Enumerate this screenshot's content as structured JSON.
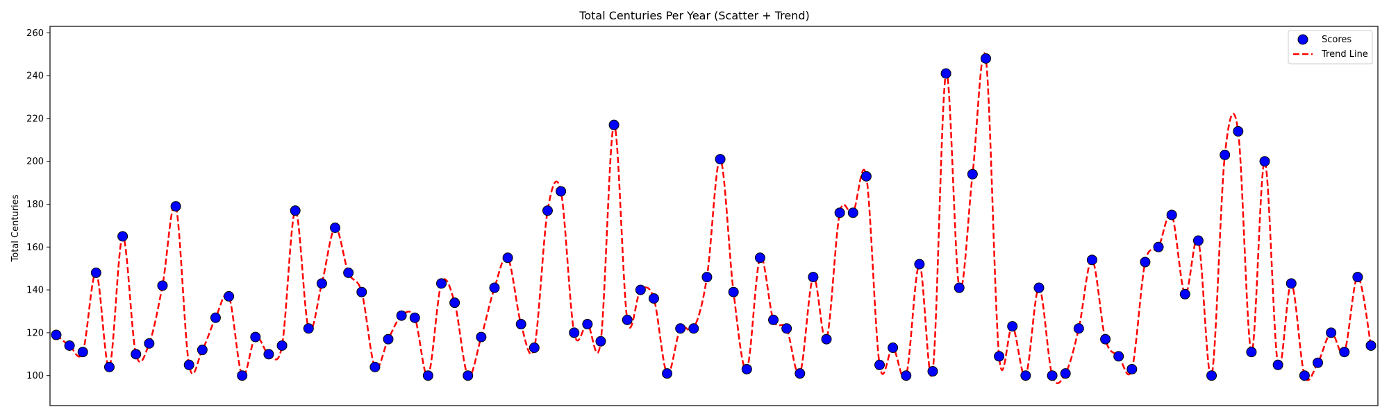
{
  "chart_data": {
    "type": "scatter",
    "title": "Total Centuries Per Year (Scatter + Trend)",
    "xlabel": "",
    "ylabel": "Total Centuries",
    "ylim": [
      86,
      263
    ],
    "yticks": [
      100,
      120,
      140,
      160,
      180,
      200,
      220,
      240,
      260
    ],
    "grid": false,
    "legend_position": "top-right",
    "series": [
      {
        "name": "Scores",
        "kind": "scatter",
        "color": "#0000ff",
        "edge_color": "#000000",
        "values": [
          119,
          114,
          111,
          148,
          104,
          165,
          110,
          115,
          142,
          179,
          105,
          112,
          127,
          137,
          100,
          118,
          110,
          114,
          177,
          122,
          143,
          169,
          148,
          139,
          104,
          117,
          128,
          127,
          100,
          143,
          134,
          100,
          118,
          141,
          155,
          124,
          113,
          177,
          186,
          120,
          124,
          116,
          217,
          126,
          140,
          136,
          101,
          122,
          122,
          146,
          201,
          139,
          103,
          155,
          126,
          122,
          101,
          146,
          117,
          176,
          176,
          193,
          105,
          113,
          100,
          152,
          102,
          241,
          141,
          194,
          248,
          109,
          123,
          100,
          141,
          100,
          101,
          122,
          154,
          117,
          109,
          103,
          153,
          160,
          175,
          138,
          163,
          100,
          203,
          214,
          111,
          200,
          105,
          143,
          100,
          106,
          120,
          111,
          146,
          114
        ]
      },
      {
        "name": "Trend Line",
        "kind": "line",
        "style": "dashed",
        "color": "#ff0000",
        "smooth": true
      }
    ]
  }
}
